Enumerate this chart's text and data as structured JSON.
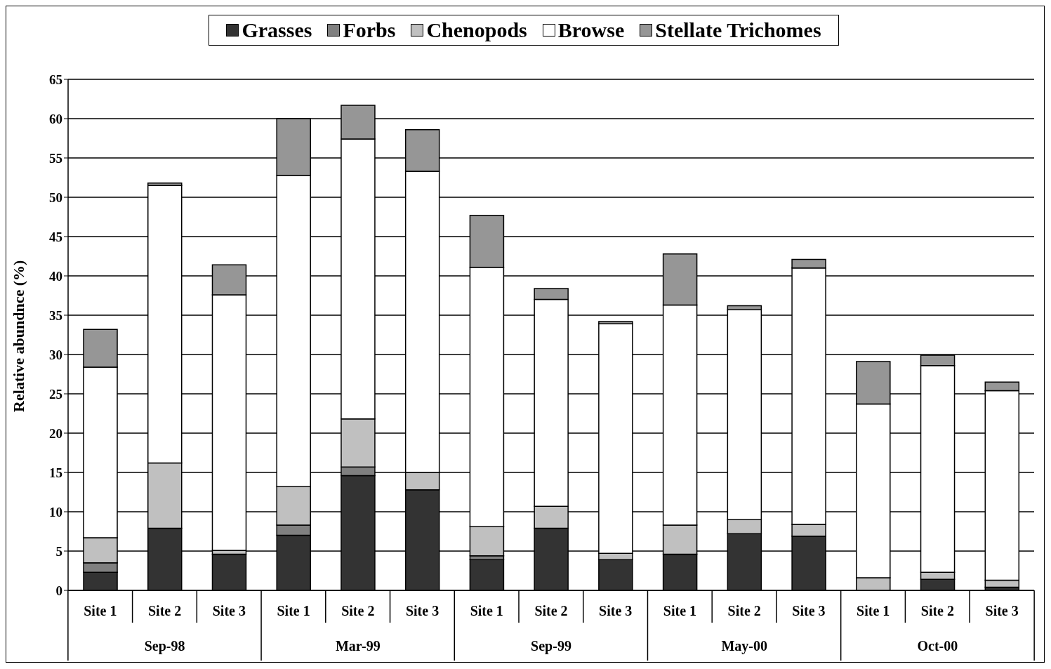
{
  "chart_data": {
    "type": "bar",
    "stacked": true,
    "ylabel": "Relative abundnce (%)",
    "categories": [
      "Site 1",
      "Site 2",
      "Site 3",
      "Site 1",
      "Site 2",
      "Site 3",
      "Site 1",
      "Site 2",
      "Site 3",
      "Site 1",
      "Site 2",
      "Site 3",
      "Site 1",
      "Site 2",
      "Site 3"
    ],
    "annotations": [
      "Sep-98",
      "Mar-99",
      "Sep-99",
      "May-00",
      "Oct-00"
    ],
    "series": [
      {
        "name": "Grasses",
        "color": "#333333",
        "values": [
          2.3,
          7.9,
          4.6,
          7.0,
          14.6,
          12.8,
          3.9,
          7.9,
          3.9,
          4.6,
          7.2,
          6.9,
          null,
          1.4,
          0.4
        ]
      },
      {
        "name": "Forbs",
        "color": "#808080",
        "values": [
          1.2,
          0,
          0,
          1.3,
          1.1,
          0,
          0.5,
          0,
          0,
          0,
          0,
          0,
          0,
          0,
          0
        ]
      },
      {
        "name": "Chenopods",
        "color": "#c0c0c0",
        "values": [
          3.2,
          8.3,
          0.5,
          4.9,
          6.1,
          2.2,
          3.7,
          2.8,
          0.8,
          3.7,
          1.8,
          1.5,
          1.6,
          0.9,
          0.9
        ]
      },
      {
        "name": "Browse",
        "color": "#ffffff",
        "values": [
          21.7,
          35.3,
          32.5,
          39.6,
          35.6,
          38.3,
          33.0,
          26.3,
          29.2,
          28.0,
          26.7,
          32.6,
          22.1,
          26.3,
          24.1
        ]
      },
      {
        "name": "Stellate Trichomes",
        "color": "#969696",
        "values": [
          4.8,
          0.3,
          3.8,
          7.2,
          4.3,
          5.3,
          6.6,
          1.4,
          0.3,
          6.5,
          0.5,
          1.1,
          5.4,
          1.3,
          1.1
        ]
      }
    ],
    "ylim": [
      0,
      65
    ],
    "yticks": [
      0,
      5,
      10,
      15,
      20,
      25,
      30,
      35,
      40,
      45,
      50,
      55,
      60,
      65
    ],
    "grid": "y",
    "legend": "top"
  }
}
